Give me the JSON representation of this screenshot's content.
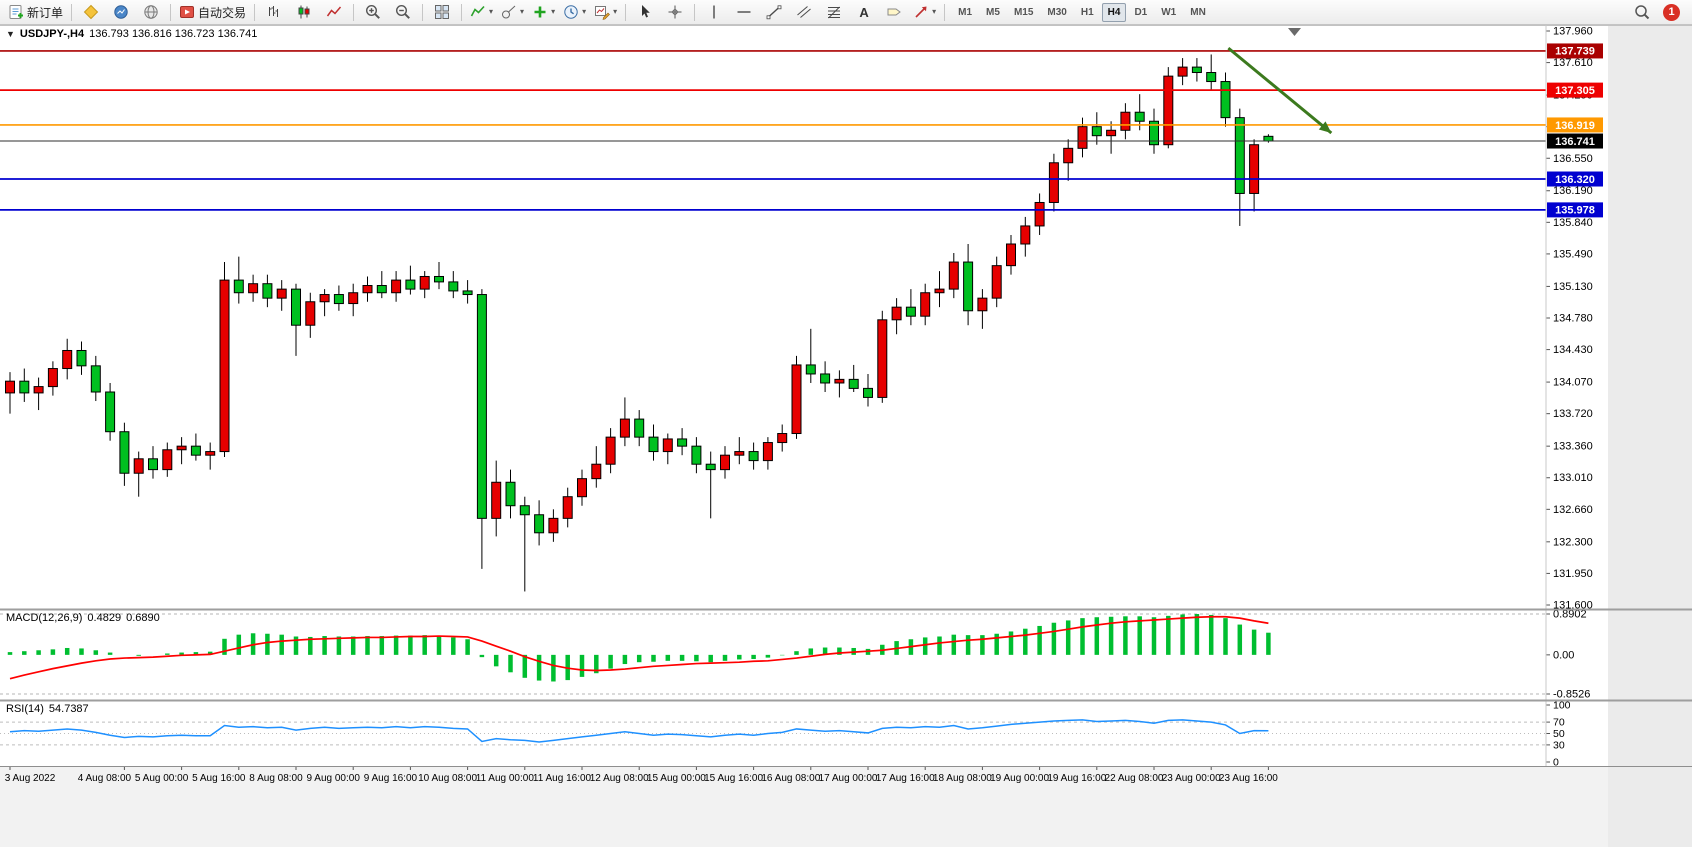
{
  "icons": {
    "chart_dropdown": "▼",
    "caret_down": "▾",
    "text_tool": "A"
  },
  "toolbar": {
    "new_order": "新订单",
    "autotrading": "自动交易",
    "timeframes": [
      "M1",
      "M5",
      "M15",
      "M30",
      "H1",
      "H4",
      "D1",
      "W1",
      "MN"
    ],
    "active_timeframe": "H4",
    "notification_count": "1"
  },
  "chart_header": {
    "symbol_period": "USDJPY-,H4",
    "ohlc": "136.793 136.816 136.723 136.741"
  },
  "chart_data": {
    "type": "candlestick",
    "symbol": "USDJPY-",
    "timeframe": "H4",
    "colors": {
      "up": "#E60000",
      "down": "#00C020",
      "outline": "#000000",
      "background": "#FFFFFF"
    },
    "y_axis": {
      "top_price": 137.96,
      "bottom_price": 131.6,
      "ticks": [
        "137.960",
        "137.610",
        "137.250",
        "136.900",
        "136.550",
        "136.190",
        "135.840",
        "135.490",
        "135.130",
        "134.780",
        "134.430",
        "134.070",
        "133.720",
        "133.360",
        "133.010",
        "132.660",
        "132.300",
        "131.950",
        "131.600"
      ]
    },
    "candles": [
      [
        133.95,
        134.18,
        133.72,
        134.08
      ],
      [
        134.08,
        134.22,
        133.85,
        133.95
      ],
      [
        133.95,
        134.12,
        133.76,
        134.02
      ],
      [
        134.02,
        134.3,
        133.92,
        134.22
      ],
      [
        134.22,
        134.55,
        134.1,
        134.42
      ],
      [
        134.42,
        134.52,
        134.15,
        134.25
      ],
      [
        134.25,
        134.36,
        133.86,
        133.96
      ],
      [
        133.96,
        134.06,
        133.42,
        133.52
      ],
      [
        133.52,
        133.62,
        132.92,
        133.06
      ],
      [
        133.06,
        133.3,
        132.8,
        133.22
      ],
      [
        133.22,
        133.36,
        133.0,
        133.1
      ],
      [
        133.1,
        133.4,
        133.02,
        133.32
      ],
      [
        133.32,
        133.46,
        133.16,
        133.36
      ],
      [
        133.36,
        133.5,
        133.2,
        133.26
      ],
      [
        133.26,
        133.4,
        133.1,
        133.3
      ],
      [
        133.3,
        135.4,
        133.24,
        135.2
      ],
      [
        135.2,
        135.46,
        134.94,
        135.06
      ],
      [
        135.06,
        135.26,
        134.96,
        135.16
      ],
      [
        135.16,
        135.26,
        134.9,
        135.0
      ],
      [
        135.0,
        135.2,
        134.86,
        135.1
      ],
      [
        135.1,
        135.16,
        134.36,
        134.7
      ],
      [
        134.7,
        135.06,
        134.56,
        134.96
      ],
      [
        134.96,
        135.1,
        134.8,
        135.04
      ],
      [
        135.04,
        135.14,
        134.86,
        134.94
      ],
      [
        134.94,
        135.16,
        134.8,
        135.06
      ],
      [
        135.06,
        135.24,
        134.96,
        135.14
      ],
      [
        135.14,
        135.3,
        135.0,
        135.06
      ],
      [
        135.06,
        135.3,
        134.96,
        135.2
      ],
      [
        135.2,
        135.36,
        135.04,
        135.1
      ],
      [
        135.1,
        135.3,
        135.0,
        135.24
      ],
      [
        135.24,
        135.4,
        135.1,
        135.18
      ],
      [
        135.18,
        135.3,
        135.0,
        135.08
      ],
      [
        135.08,
        135.2,
        134.94,
        135.04
      ],
      [
        135.04,
        135.1,
        132.0,
        132.56
      ],
      [
        132.56,
        133.2,
        132.36,
        132.96
      ],
      [
        132.96,
        133.1,
        132.56,
        132.7
      ],
      [
        132.7,
        132.8,
        131.75,
        132.6
      ],
      [
        132.6,
        132.76,
        132.26,
        132.4
      ],
      [
        132.4,
        132.66,
        132.3,
        132.56
      ],
      [
        132.56,
        132.9,
        132.46,
        132.8
      ],
      [
        132.8,
        133.1,
        132.7,
        133.0
      ],
      [
        133.0,
        133.36,
        132.9,
        133.16
      ],
      [
        133.16,
        133.56,
        133.06,
        133.46
      ],
      [
        133.46,
        133.9,
        133.36,
        133.66
      ],
      [
        133.66,
        133.76,
        133.36,
        133.46
      ],
      [
        133.46,
        133.6,
        133.2,
        133.3
      ],
      [
        133.3,
        133.5,
        133.16,
        133.44
      ],
      [
        133.44,
        133.56,
        133.26,
        133.36
      ],
      [
        133.36,
        133.46,
        133.06,
        133.16
      ],
      [
        133.16,
        133.3,
        132.56,
        133.1
      ],
      [
        133.1,
        133.36,
        133.0,
        133.26
      ],
      [
        133.26,
        133.46,
        133.16,
        133.3
      ],
      [
        133.3,
        133.4,
        133.1,
        133.2
      ],
      [
        133.2,
        133.46,
        133.1,
        133.4
      ],
      [
        133.4,
        133.6,
        133.3,
        133.5
      ],
      [
        133.5,
        134.36,
        133.44,
        134.26
      ],
      [
        134.26,
        134.66,
        134.06,
        134.16
      ],
      [
        134.16,
        134.3,
        133.96,
        134.06
      ],
      [
        134.06,
        134.2,
        133.9,
        134.1
      ],
      [
        134.1,
        134.26,
        133.96,
        134.0
      ],
      [
        134.0,
        134.16,
        133.8,
        133.9
      ],
      [
        133.9,
        134.86,
        133.84,
        134.76
      ],
      [
        134.76,
        135.0,
        134.6,
        134.9
      ],
      [
        134.9,
        135.1,
        134.7,
        134.8
      ],
      [
        134.8,
        135.16,
        134.7,
        135.06
      ],
      [
        135.06,
        135.3,
        134.9,
        135.1
      ],
      [
        135.1,
        135.5,
        135.0,
        135.4
      ],
      [
        135.4,
        135.6,
        134.7,
        134.86
      ],
      [
        134.86,
        135.1,
        134.66,
        135.0
      ],
      [
        135.0,
        135.46,
        134.9,
        135.36
      ],
      [
        135.36,
        135.7,
        135.26,
        135.6
      ],
      [
        135.6,
        135.9,
        135.46,
        135.8
      ],
      [
        135.8,
        136.16,
        135.7,
        136.06
      ],
      [
        136.06,
        136.6,
        135.96,
        136.5
      ],
      [
        136.5,
        136.76,
        136.3,
        136.66
      ],
      [
        136.66,
        137.0,
        136.56,
        136.9
      ],
      [
        136.9,
        137.06,
        136.7,
        136.8
      ],
      [
        136.8,
        136.96,
        136.6,
        136.86
      ],
      [
        136.86,
        137.16,
        136.76,
        137.06
      ],
      [
        137.06,
        137.26,
        136.86,
        136.96
      ],
      [
        136.96,
        137.1,
        136.6,
        136.7
      ],
      [
        136.7,
        137.56,
        136.66,
        137.46
      ],
      [
        137.46,
        137.66,
        137.36,
        137.56
      ],
      [
        137.56,
        137.66,
        137.4,
        137.5
      ],
      [
        137.5,
        137.7,
        137.3,
        137.4
      ],
      [
        137.4,
        137.5,
        136.9,
        137.0
      ],
      [
        137.0,
        137.1,
        135.8,
        136.16
      ],
      [
        136.16,
        136.76,
        135.96,
        136.7
      ],
      [
        136.793,
        136.816,
        136.723,
        136.741
      ]
    ],
    "time_axis": {
      "indices": [
        0,
        8,
        12,
        16,
        20,
        24,
        28,
        32,
        36,
        40,
        44,
        48,
        52,
        56,
        60,
        64,
        68,
        72,
        76,
        80,
        84,
        88
      ],
      "labels": [
        "3 Aug 2022",
        "4 Aug 08:00",
        "5 Aug 00:00",
        "5 Aug 16:00",
        "8 Aug 08:00",
        "9 Aug 00:00",
        "9 Aug 16:00",
        "10 Aug 08:00",
        "11 Aug 00:00",
        "11 Aug 16:00",
        "12 Aug 08:00",
        "15 Aug 00:00",
        "15 Aug 16:00",
        "16 Aug 08:00",
        "17 Aug 00:00",
        "17 Aug 16:00",
        "18 Aug 08:00",
        "19 Aug 00:00",
        "19 Aug 16:00",
        "22 Aug 08:00",
        "23 Aug 00:00",
        "23 Aug 16:00"
      ]
    },
    "hlines": [
      {
        "price": 137.739,
        "label": "137.739",
        "color": "#AA0000"
      },
      {
        "price": 137.305,
        "label": "137.305",
        "color": "#EE0000"
      },
      {
        "price": 136.919,
        "label": "136.919",
        "color": "#FF9900"
      },
      {
        "price": 136.32,
        "label": "136.320",
        "color": "#0000D0"
      },
      {
        "price": 135.978,
        "label": "135.978",
        "color": "#0000D0"
      }
    ],
    "current_price": {
      "price": 136.741,
      "label": "136.741",
      "line_color": "#2F2F2F",
      "badge_color": "#000000"
    },
    "arrow": {
      "from_index": 85.2,
      "from_price": 137.77,
      "to_index": 92.4,
      "to_price": 136.83,
      "color": "#3C7A1E"
    },
    "macd": {
      "label": "MACD(12,26,9)",
      "main_value": "0.4829",
      "signal_value": "0.6890",
      "colors": {
        "hist": "#00BE30",
        "signal": "#FF0000"
      },
      "axis_labels": [
        {
          "v": 0.8902,
          "t": "0.8902",
          "dashed": true
        },
        {
          "v": 0.0,
          "t": "0.00",
          "dashed": false
        },
        {
          "v": -0.8526,
          "t": "-0.8526",
          "dashed": true
        }
      ],
      "hist": [
        0.06,
        0.08,
        0.1,
        0.12,
        0.15,
        0.14,
        0.1,
        0.05,
        0.0,
        -0.02,
        0.0,
        0.03,
        0.05,
        0.06,
        0.07,
        0.35,
        0.44,
        0.47,
        0.46,
        0.44,
        0.4,
        0.39,
        0.41,
        0.4,
        0.4,
        0.41,
        0.41,
        0.42,
        0.42,
        0.43,
        0.41,
        0.38,
        0.34,
        -0.05,
        -0.25,
        -0.38,
        -0.5,
        -0.56,
        -0.58,
        -0.55,
        -0.48,
        -0.4,
        -0.3,
        -0.2,
        -0.16,
        -0.15,
        -0.13,
        -0.13,
        -0.14,
        -0.16,
        -0.13,
        -0.1,
        -0.09,
        -0.06,
        -0.01,
        0.08,
        0.14,
        0.16,
        0.16,
        0.15,
        0.13,
        0.22,
        0.3,
        0.34,
        0.38,
        0.4,
        0.44,
        0.43,
        0.43,
        0.46,
        0.51,
        0.57,
        0.63,
        0.7,
        0.75,
        0.8,
        0.82,
        0.83,
        0.84,
        0.84,
        0.82,
        0.85,
        0.88,
        0.89,
        0.87,
        0.8,
        0.66,
        0.55,
        0.4829
      ],
      "signal": [
        -0.52,
        -0.44,
        -0.37,
        -0.3,
        -0.24,
        -0.18,
        -0.13,
        -0.09,
        -0.07,
        -0.06,
        -0.05,
        -0.03,
        -0.01,
        0.0,
        0.01,
        0.08,
        0.15,
        0.22,
        0.27,
        0.3,
        0.32,
        0.34,
        0.35,
        0.36,
        0.37,
        0.38,
        0.38,
        0.39,
        0.4,
        0.4,
        0.41,
        0.4,
        0.39,
        0.3,
        0.19,
        0.08,
        -0.04,
        -0.14,
        -0.23,
        -0.29,
        -0.33,
        -0.34,
        -0.33,
        -0.31,
        -0.28,
        -0.25,
        -0.23,
        -0.21,
        -0.19,
        -0.18,
        -0.17,
        -0.16,
        -0.14,
        -0.13,
        -0.1,
        -0.07,
        -0.03,
        0.01,
        0.04,
        0.06,
        0.08,
        0.1,
        0.14,
        0.18,
        0.22,
        0.26,
        0.29,
        0.32,
        0.34,
        0.37,
        0.4,
        0.43,
        0.47,
        0.51,
        0.56,
        0.61,
        0.65,
        0.69,
        0.72,
        0.74,
        0.76,
        0.78,
        0.8,
        0.82,
        0.83,
        0.83,
        0.8,
        0.74,
        0.689
      ]
    },
    "rsi": {
      "label": "RSI(14)",
      "value_text": "54.7387",
      "color": "#1E90FF",
      "levels": [
        70,
        50,
        30
      ],
      "axis_labels": [
        {
          "v": 100,
          "t": "100"
        },
        {
          "v": 70,
          "t": "70"
        },
        {
          "v": 50,
          "t": "50"
        },
        {
          "v": 30,
          "t": "30"
        },
        {
          "v": 0,
          "t": "0"
        }
      ],
      "values": [
        53,
        55,
        54,
        56,
        58,
        56,
        52,
        47,
        43,
        45,
        44,
        46,
        47,
        46,
        46,
        64,
        61,
        62,
        60,
        61,
        56,
        59,
        61,
        59,
        60,
        61,
        60,
        62,
        60,
        62,
        61,
        59,
        58,
        36,
        41,
        39,
        38,
        35,
        38,
        41,
        44,
        47,
        50,
        53,
        50,
        47,
        49,
        48,
        46,
        44,
        47,
        49,
        47,
        50,
        52,
        58,
        56,
        54,
        55,
        53,
        51,
        59,
        61,
        60,
        62,
        61,
        64,
        58,
        60,
        63,
        66,
        68,
        70,
        72,
        73,
        74,
        71,
        72,
        73,
        71,
        68,
        73,
        74,
        72,
        70,
        65,
        50,
        55,
        54.74
      ]
    }
  }
}
